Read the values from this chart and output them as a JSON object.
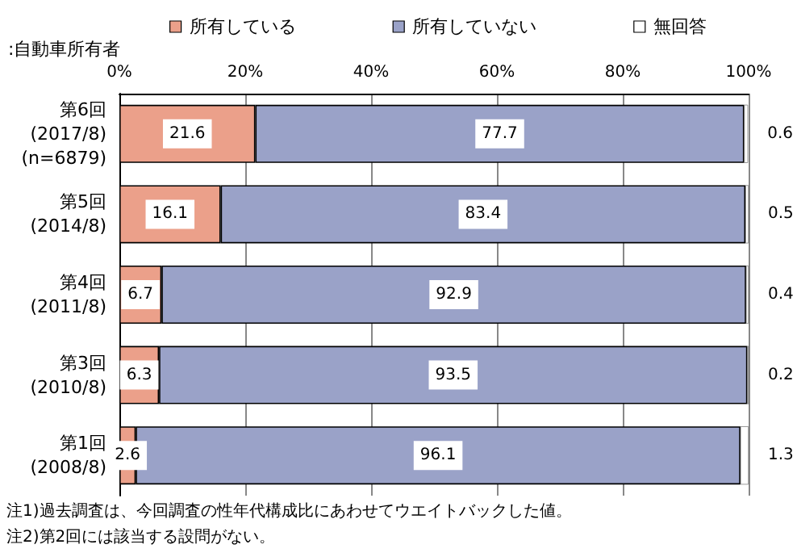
{
  "chart_data": {
    "type": "bar",
    "orientation": "horizontal",
    "stacked": true,
    "title": ":自動車所有者",
    "categories": [
      "第6回\n(2017/8)\n(n=6879)",
      "第5回\n(2014/8)",
      "第4回\n(2011/8)",
      "第3回\n(2010/8)",
      "第1回\n(2008/8)"
    ],
    "series": [
      {
        "name": "所有している",
        "color": "#eba08a",
        "values": [
          21.6,
          16.1,
          6.7,
          6.3,
          2.6
        ]
      },
      {
        "name": "所有していない",
        "color": "#9aa2c8",
        "values": [
          77.7,
          83.4,
          92.9,
          93.5,
          96.1
        ]
      },
      {
        "name": "無回答",
        "color": "#ffffff",
        "values": [
          0.6,
          0.5,
          0.4,
          0.2,
          1.3
        ]
      }
    ],
    "xlim": [
      0,
      100
    ],
    "xticks": [
      {
        "value": 0,
        "label": "0%"
      },
      {
        "value": 20,
        "label": "20%"
      },
      {
        "value": 40,
        "label": "40%"
      },
      {
        "value": 60,
        "label": "60%"
      },
      {
        "value": 80,
        "label": "80%"
      },
      {
        "value": 100,
        "label": "100%"
      }
    ],
    "grid": "x",
    "legend": "top",
    "data_labels": true,
    "annotations": [
      "注1)過去調査は、今回調査の性年代構成比にあわせてウエイトバックした値。",
      "注2)第2回には該当する設問がない。"
    ]
  }
}
